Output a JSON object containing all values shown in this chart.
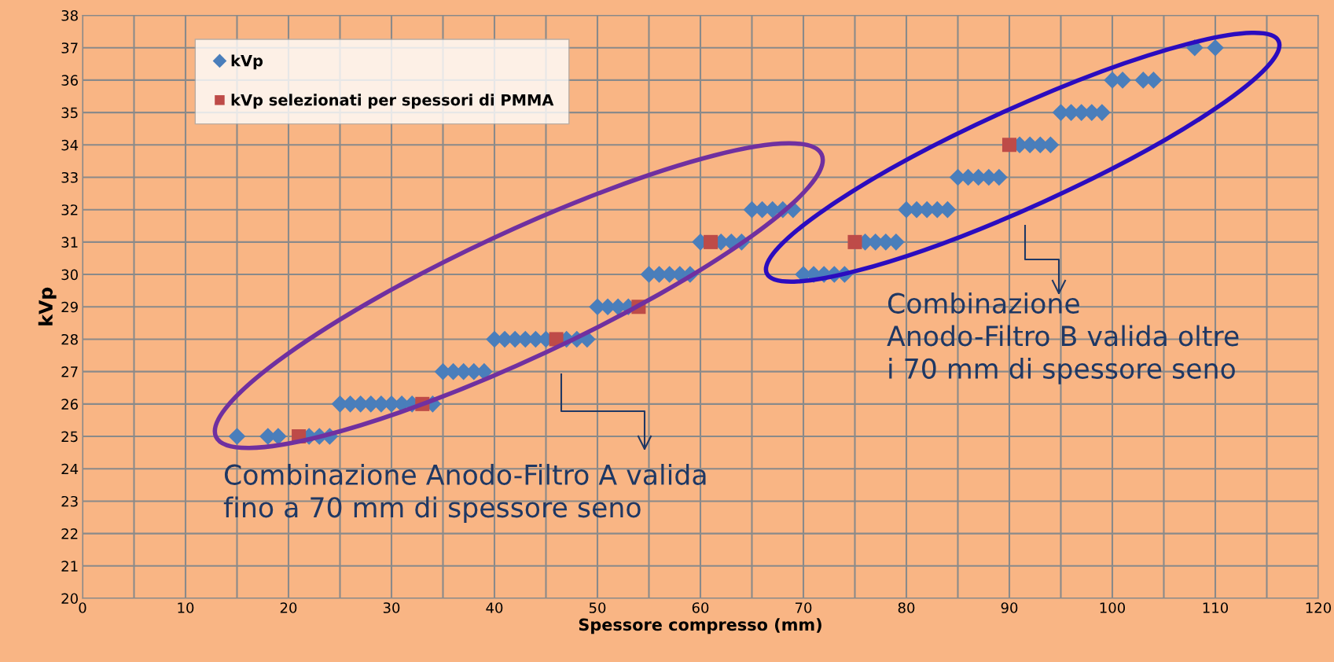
{
  "chart_data": {
    "type": "scatter",
    "xlabel": "Spessore compresso (mm)",
    "ylabel": "kVp",
    "xlim": [
      0,
      120
    ],
    "ylim": [
      20,
      38
    ],
    "xticks": [
      0,
      {
        "value": 5,
        "label": null
      },
      10,
      {
        "value": 15,
        "label": null
      },
      20,
      {
        "value": 25,
        "label": null
      },
      30,
      {
        "value": 35,
        "label": null
      },
      40,
      {
        "value": 45,
        "label": null
      },
      50,
      {
        "value": 55,
        "label": null
      },
      60,
      {
        "value": 65,
        "label": null
      },
      70,
      {
        "value": 75,
        "label": null
      },
      80,
      {
        "value": 85,
        "label": null
      },
      90,
      {
        "value": 95,
        "label": null
      },
      100,
      {
        "value": 105,
        "label": null
      },
      110,
      {
        "value": 115,
        "label": null
      },
      120
    ],
    "yticks": [
      20,
      21,
      22,
      23,
      24,
      25,
      26,
      27,
      28,
      29,
      30,
      31,
      32,
      33,
      34,
      35,
      36,
      37,
      38
    ],
    "grid": true,
    "legend": "top left",
    "series": [
      {
        "name": "kVp",
        "color": "#4a7ebb",
        "marker": "diamond",
        "x": [
          15,
          18,
          19,
          22,
          23,
          24,
          25,
          26,
          27,
          28,
          29,
          30,
          31,
          32,
          34,
          35,
          36,
          37,
          38,
          39,
          40,
          41,
          42,
          43,
          44,
          45,
          47,
          48,
          49,
          50,
          51,
          52,
          53,
          55,
          56,
          57,
          58,
          59,
          60,
          62,
          63,
          64,
          65,
          66,
          67,
          68,
          69,
          70,
          71,
          72,
          73,
          74,
          76,
          77,
          78,
          79,
          80,
          81,
          82,
          83,
          84,
          85,
          86,
          87,
          88,
          89,
          91,
          92,
          93,
          94,
          95,
          96,
          97,
          98,
          99,
          100,
          101,
          103,
          104,
          108,
          110
        ],
        "values": [
          25,
          25,
          25,
          25,
          25,
          25,
          26,
          26,
          26,
          26,
          26,
          26,
          26,
          26,
          26,
          27,
          27,
          27,
          27,
          27,
          28,
          28,
          28,
          28,
          28,
          28,
          28,
          28,
          28,
          29,
          29,
          29,
          29,
          30,
          30,
          30,
          30,
          30,
          31,
          31,
          31,
          31,
          32,
          32,
          32,
          32,
          32,
          30,
          30,
          30,
          30,
          30,
          31,
          31,
          31,
          31,
          32,
          32,
          32,
          32,
          32,
          33,
          33,
          33,
          33,
          33,
          34,
          34,
          34,
          34,
          35,
          35,
          35,
          35,
          35,
          36,
          36,
          36,
          36,
          37,
          37
        ]
      },
      {
        "name": "kVp selezionati per spessori di PMMA",
        "color": "#be4b48",
        "marker": "square",
        "x": [
          21,
          33,
          46,
          54,
          61,
          75,
          90
        ],
        "values": [
          25,
          26,
          28,
          29,
          31,
          31,
          34
        ]
      }
    ],
    "annotations": [
      "Combinazione Anodo-Filtro A valida fino a 70 mm di spessore seno",
      "Combinazione Anodo-Filtro B valida oltre i 70 mm di spessore seno"
    ]
  }
}
